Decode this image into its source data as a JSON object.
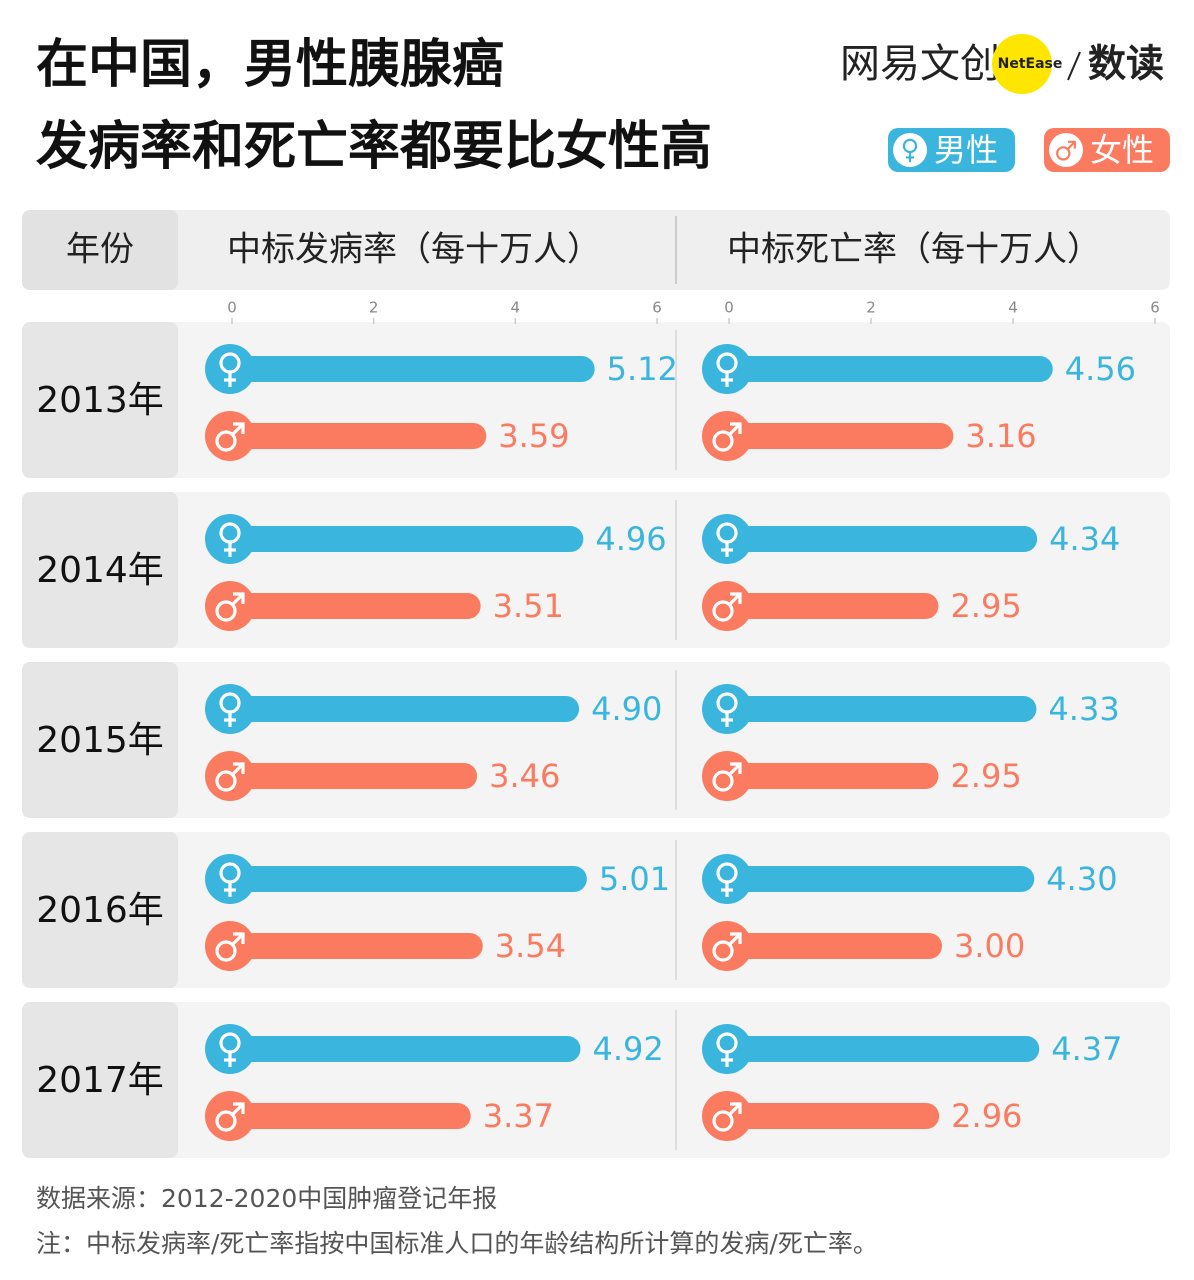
{
  "title": [
    "在中国，男性胰腺癌",
    "发病率和死亡率都要比女性高"
  ],
  "logo": {
    "brand": "网易文创",
    "badge": "NetEase",
    "section": "数读"
  },
  "year_header": "年份",
  "source": "数据来源：2012-2020中国肿瘤登记年报",
  "note": "注：中标发病率/死亡率指按中国标准人口的年龄结构所计算的发病/死亡率。",
  "chart_data": {
    "type": "bar",
    "categories": [
      "2013年",
      "2014年",
      "2015年",
      "2016年",
      "2017年"
    ],
    "legend": [
      {
        "name": "男性",
        "color": "#3ab5de"
      },
      {
        "name": "女性",
        "color": "#fa7b60"
      }
    ],
    "panels": [
      {
        "title": "中标发病率（每十万人）",
        "xlim": [
          0,
          6
        ],
        "xticks": [
          0,
          2,
          4,
          6
        ],
        "series": [
          {
            "values": [
              5.12,
              4.96,
              4.9,
              5.01,
              4.92
            ],
            "value_labels": [
              "5.12",
              "4.96",
              "4.90",
              "5.01",
              "4.92"
            ]
          },
          {
            "values": [
              3.59,
              3.51,
              3.46,
              3.54,
              3.37
            ],
            "value_labels": [
              "3.59",
              "3.51",
              "3.46",
              "3.54",
              "3.37"
            ]
          }
        ]
      },
      {
        "title": "中标死亡率（每十万人）",
        "xlim": [
          0,
          6
        ],
        "xticks": [
          0,
          2,
          4,
          6
        ],
        "series": [
          {
            "values": [
              4.56,
              4.34,
              4.33,
              4.3,
              4.37
            ],
            "value_labels": [
              "4.56",
              "4.34",
              "4.33",
              "4.30",
              "4.37"
            ]
          },
          {
            "values": [
              3.16,
              2.95,
              2.95,
              3.0,
              2.96
            ],
            "value_labels": [
              "3.16",
              "2.95",
              "2.95",
              "3.00",
              "2.96"
            ]
          }
        ]
      }
    ]
  }
}
